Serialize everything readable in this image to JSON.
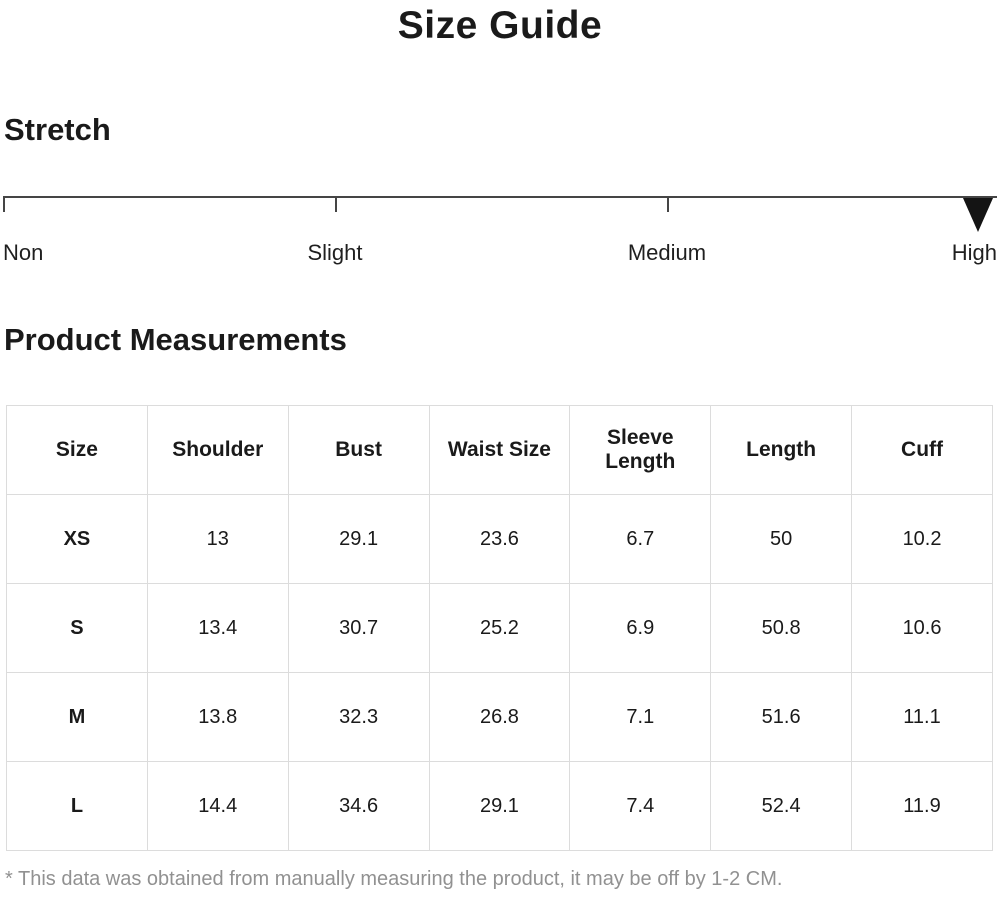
{
  "page": {
    "title": "Size Guide"
  },
  "stretch": {
    "heading": "Stretch",
    "levels": [
      "Non",
      "Slight",
      "Medium",
      "High"
    ],
    "selected_level": "High",
    "marker_position_percent": 100
  },
  "measurements": {
    "heading": "Product Measurements",
    "columns": [
      "Size",
      "Shoulder",
      "Bust",
      "Waist Size",
      "Sleeve Length",
      "Length",
      "Cuff"
    ],
    "rows": [
      [
        "XS",
        "13",
        "29.1",
        "23.6",
        "6.7",
        "50",
        "10.2"
      ],
      [
        "S",
        "13.4",
        "30.7",
        "25.2",
        "6.9",
        "50.8",
        "10.6"
      ],
      [
        "M",
        "13.8",
        "32.3",
        "26.8",
        "7.1",
        "51.6",
        "11.1"
      ],
      [
        "L",
        "14.4",
        "34.6",
        "29.1",
        "7.4",
        "52.4",
        "11.9"
      ]
    ]
  },
  "footnote": "* This data was obtained from manually measuring the product, it may be off by 1-2 CM."
}
